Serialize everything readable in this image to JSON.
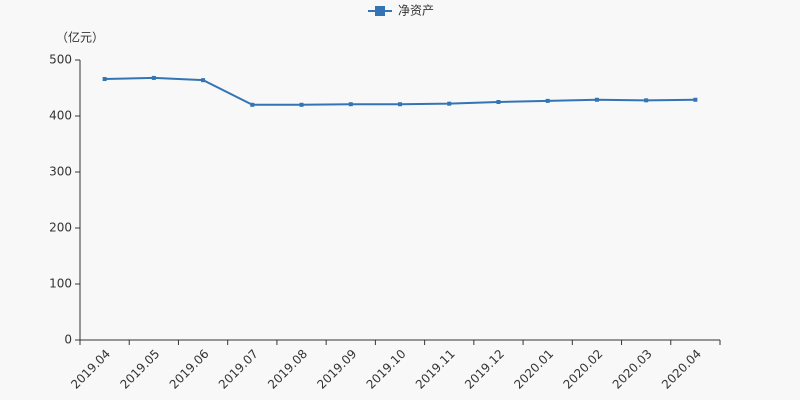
{
  "chart_data": {
    "type": "line",
    "y_unit_label": "（亿元）",
    "categories": [
      "2019.04",
      "2019.05",
      "2019.06",
      "2019.07",
      "2019.08",
      "2019.09",
      "2019.10",
      "2019.11",
      "2019.12",
      "2020.01",
      "2020.02",
      "2020.03",
      "2020.04"
    ],
    "series": [
      {
        "name": "净资产",
        "color": "#3375b4",
        "values": [
          466,
          468,
          464,
          420,
          420,
          421,
          421,
          422,
          425,
          427,
          429,
          428,
          429
        ]
      }
    ],
    "ylim": [
      0,
      500
    ],
    "yticks": [
      0,
      100,
      200,
      300,
      400,
      500
    ],
    "grid": false,
    "legend": "top"
  }
}
